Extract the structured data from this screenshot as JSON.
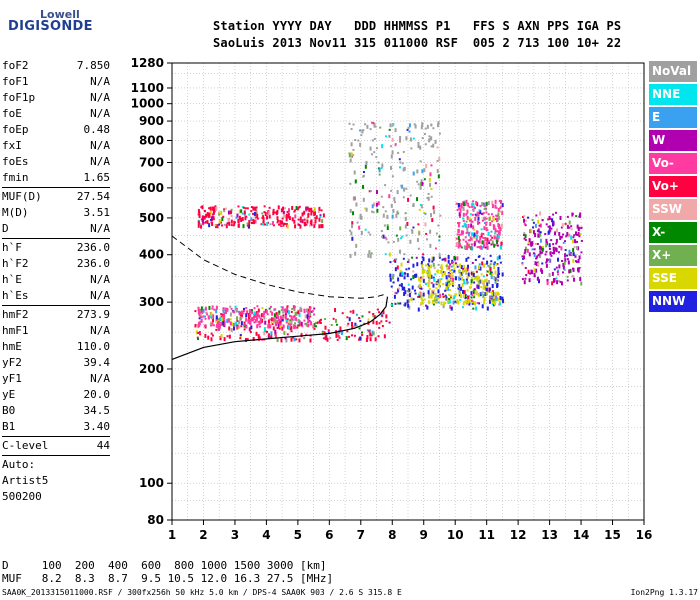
{
  "logo": {
    "line1": "Lowell",
    "line2": "DIGISONDE"
  },
  "header": {
    "labels": "Station YYYY DAY   DDD HHMMSS P1   FFS S AXN PPS IGA PS",
    "values": "SaoLuis 2013 Nov11 315 011000 RSF  005 2 713 100 10+ 22"
  },
  "params": {
    "group1": [
      {
        "label": "foF2",
        "value": "7.850"
      },
      {
        "label": "foF1",
        "value": "N/A"
      },
      {
        "label": "foF1p",
        "value": "N/A"
      },
      {
        "label": "foE",
        "value": "N/A"
      },
      {
        "label": "foEp",
        "value": "0.48"
      },
      {
        "label": "fxI",
        "value": "N/A"
      },
      {
        "label": "foEs",
        "value": "N/A"
      },
      {
        "label": "fmin",
        "value": "1.65"
      }
    ],
    "group2": [
      {
        "label": "MUF(D)",
        "value": "27.54"
      },
      {
        "label": "M(D)",
        "value": "3.51"
      },
      {
        "label": "D",
        "value": "N/A"
      }
    ],
    "group3": [
      {
        "label": "h`F",
        "value": "236.0"
      },
      {
        "label": "h`F2",
        "value": "236.0"
      },
      {
        "label": "h`E",
        "value": "N/A"
      },
      {
        "label": "h`Es",
        "value": "N/A"
      }
    ],
    "group4": [
      {
        "label": "hmF2",
        "value": "273.9"
      },
      {
        "label": "hmF1",
        "value": "N/A"
      },
      {
        "label": "hmE",
        "value": "110.0"
      },
      {
        "label": "yF2",
        "value": "39.4"
      },
      {
        "label": "yF1",
        "value": "N/A"
      },
      {
        "label": "yE",
        "value": "20.0"
      },
      {
        "label": "B0",
        "value": "34.5"
      },
      {
        "label": "B1",
        "value": "3.40"
      }
    ],
    "group5": [
      {
        "label": "C-level",
        "value": "44"
      }
    ],
    "auto": [
      "Auto:",
      "Artist5",
      "500200"
    ]
  },
  "legend": [
    {
      "label": "NoVal",
      "color": "#a0a0a0"
    },
    {
      "label": "NNE",
      "color": "#00e5ee"
    },
    {
      "label": "E",
      "color": "#3aa0f0"
    },
    {
      "label": "W",
      "color": "#b000b0"
    },
    {
      "label": "Vo-",
      "color": "#ff3aa0"
    },
    {
      "label": "Vo+",
      "color": "#ff0040"
    },
    {
      "label": "SSW",
      "color": "#f0a8a8"
    },
    {
      "label": "X-",
      "color": "#008800"
    },
    {
      "label": "X+",
      "color": "#70b050"
    },
    {
      "label": "SSE",
      "color": "#d8d800"
    },
    {
      "label": "NNW",
      "color": "#2020e0"
    }
  ],
  "chart_data": {
    "type": "scatter",
    "title": "",
    "xlabel": "",
    "ylabel": "",
    "xlim": [
      1,
      16
    ],
    "ylim": [
      80,
      1280
    ],
    "yscale": "log",
    "x_ticks": [
      "1",
      "2",
      "3",
      "4",
      "5",
      "6",
      "7",
      "8",
      "9",
      "10",
      "11",
      "12",
      "13",
      "14",
      "15",
      "16"
    ],
    "y_ticks": [
      {
        "value": 80,
        "label": "80"
      },
      {
        "value": 100,
        "label": "100"
      },
      {
        "value": 200,
        "label": "200"
      },
      {
        "value": 300,
        "label": "300"
      },
      {
        "value": 400,
        "label": "400"
      },
      {
        "value": 500,
        "label": "500"
      },
      {
        "value": 600,
        "label": "600"
      },
      {
        "value": 700,
        "label": "700"
      },
      {
        "value": 800,
        "label": "800"
      },
      {
        "value": 900,
        "label": "900"
      },
      {
        "value": 1000,
        "label": "1000"
      },
      {
        "value": 1100,
        "label": "1100"
      },
      {
        "value": 1280,
        "label": "1280"
      }
    ],
    "grid": "dotted",
    "trace_clusters": [
      {
        "name": "o-trace low",
        "xrange": [
          1.7,
          7.9
        ],
        "yrange": [
          240,
          290
        ],
        "color": "#ff0040"
      },
      {
        "name": "o-trace low magenta",
        "xrange": [
          1.8,
          5.5
        ],
        "yrange": [
          260,
          295
        ],
        "color": "#ff3aa0"
      },
      {
        "name": "spread F region",
        "xrange": [
          7.9,
          11.5
        ],
        "yrange": [
          290,
          400
        ],
        "color": "#2020e0"
      },
      {
        "name": "spread F yellow",
        "xrange": [
          8.8,
          11.4
        ],
        "yrange": [
          300,
          380
        ],
        "color": "#d8d800"
      },
      {
        "name": "second hop",
        "xrange": [
          1.8,
          5.8
        ],
        "yrange": [
          480,
          540
        ],
        "color": "#ff0040"
      },
      {
        "name": "upper spread",
        "xrange": [
          10.0,
          11.5
        ],
        "yrange": [
          420,
          560
        ],
        "color": "#ff3aa0"
      },
      {
        "name": "far spread",
        "xrange": [
          12.1,
          14.0
        ],
        "yrange": [
          340,
          520
        ],
        "color": "#b000b0"
      },
      {
        "name": "mid scatter",
        "xrange": [
          6.6,
          9.5
        ],
        "yrange": [
          400,
          900
        ],
        "color": "#a0a0a0"
      }
    ],
    "profile_curve": [
      {
        "x": 1.0,
        "y": 212
      },
      {
        "x": 2.0,
        "y": 228
      },
      {
        "x": 3.0,
        "y": 236
      },
      {
        "x": 4.0,
        "y": 240
      },
      {
        "x": 5.0,
        "y": 244
      },
      {
        "x": 6.0,
        "y": 248
      },
      {
        "x": 6.8,
        "y": 256
      },
      {
        "x": 7.3,
        "y": 266
      },
      {
        "x": 7.6,
        "y": 278
      },
      {
        "x": 7.8,
        "y": 292
      },
      {
        "x": 7.85,
        "y": 310
      }
    ],
    "dashed_curve": [
      {
        "x": 1.0,
        "y": 448
      },
      {
        "x": 2.0,
        "y": 388
      },
      {
        "x": 3.0,
        "y": 355
      },
      {
        "x": 4.0,
        "y": 334
      },
      {
        "x": 5.0,
        "y": 319
      },
      {
        "x": 6.0,
        "y": 310
      },
      {
        "x": 7.0,
        "y": 307
      },
      {
        "x": 7.5,
        "y": 310
      },
      {
        "x": 7.85,
        "y": 316
      }
    ]
  },
  "footer": {
    "d_row": "D     100  200  400  600  800 1000 1500 3000 [km]",
    "muf_row": "MUF   8.2  8.3  8.7  9.5 10.5 12.0 16.3 27.5 [MHz]",
    "file": "SAA0K_2013315011000.RSF / 300fx256h 50 kHz 5.0 km / DPS-4 SAA0K 903 / 2.6 S 315.8 E",
    "version": "Ion2Png 1.3.17"
  }
}
